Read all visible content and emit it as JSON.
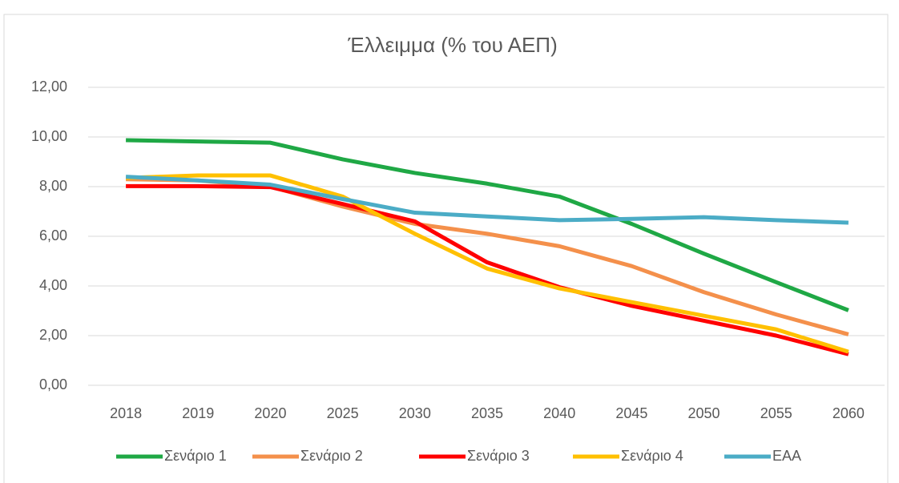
{
  "chart_data": {
    "type": "line",
    "title": "Έλλειμμα (% του ΑΕΠ)",
    "categories": [
      "2018",
      "2019",
      "2020",
      "2025",
      "2030",
      "2035",
      "2040",
      "2045",
      "2050",
      "2055",
      "2060"
    ],
    "series": [
      {
        "name": "Σενάριο 1",
        "color": "#1fa845",
        "values": [
          9.87,
          9.82,
          9.77,
          9.1,
          8.55,
          8.12,
          7.6,
          6.5,
          5.3,
          4.15,
          3.02
        ]
      },
      {
        "name": "Σενάριο 2",
        "color": "#f4904b",
        "values": [
          8.3,
          8.25,
          8.0,
          7.2,
          6.5,
          6.1,
          5.6,
          4.8,
          3.75,
          2.85,
          2.05
        ]
      },
      {
        "name": "Σενάριο 3",
        "color": "#ff0000",
        "values": [
          8.02,
          8.02,
          7.98,
          7.3,
          6.6,
          4.95,
          3.95,
          3.2,
          2.6,
          2.0,
          1.25
        ]
      },
      {
        "name": "Σενάριο 4",
        "color": "#ffc000",
        "values": [
          8.35,
          8.45,
          8.45,
          7.6,
          6.1,
          4.7,
          3.9,
          3.35,
          2.8,
          2.25,
          1.35
        ]
      },
      {
        "name": "ΕΑΑ",
        "color": "#4bacc6",
        "values": [
          8.4,
          8.25,
          8.08,
          7.5,
          6.95,
          6.8,
          6.65,
          6.7,
          6.77,
          6.65,
          6.55
        ]
      }
    ],
    "ylim": [
      0,
      12
    ],
    "yticks": [
      {
        "value": 0,
        "label": "0,00"
      },
      {
        "value": 2,
        "label": "2,00"
      },
      {
        "value": 4,
        "label": "4,00"
      },
      {
        "value": 6,
        "label": "6,00"
      },
      {
        "value": 8,
        "label": "8,00"
      },
      {
        "value": 10,
        "label": "10,00"
      },
      {
        "value": 12,
        "label": "12,00"
      }
    ],
    "grid": true,
    "legend": "bottom"
  }
}
